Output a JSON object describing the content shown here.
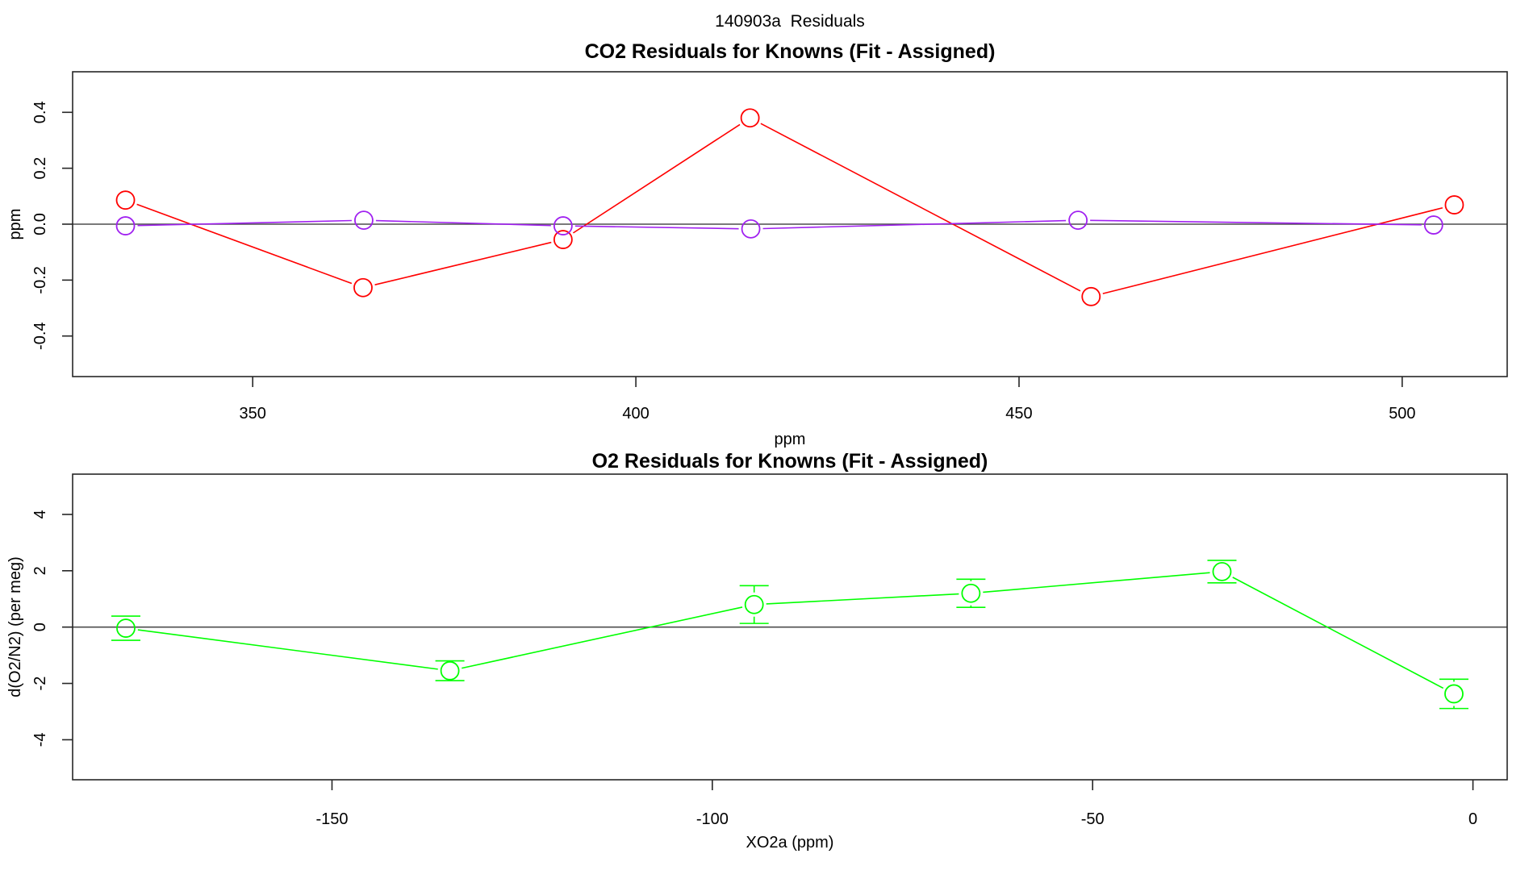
{
  "page": {
    "main_title": "140903a  Residuals",
    "background_color": "#ffffff",
    "box_color": "#262626",
    "zero_line_color": "#4d4d4d"
  },
  "chart_data": [
    {
      "type": "line",
      "title": "CO2 Residuals for Knowns (Fit - Assigned)",
      "xlabel": "ppm",
      "ylabel": "ppm",
      "xlim": [
        326.5,
        513.7
      ],
      "ylim": [
        -0.545,
        0.545
      ],
      "xtick_values": [
        350,
        400,
        450,
        500
      ],
      "xtick_labels": [
        "350",
        "400",
        "450",
        "500"
      ],
      "ytick_values": [
        -0.4,
        -0.2,
        0.0,
        0.2,
        0.4
      ],
      "ytick_labels": [
        "-0.4",
        "-0.2",
        "0.0",
        "0.2",
        "0.4"
      ],
      "grid": false,
      "zero_line": true,
      "legend": null,
      "marker": "open-circle",
      "series": [
        {
          "name": "co2-residual-red",
          "color": "#FF0000",
          "x": [
            333.4,
            364.4,
            390.5,
            414.9,
            459.4,
            506.8
          ],
          "y": [
            0.086,
            -0.227,
            -0.055,
            0.38,
            -0.259,
            0.069
          ]
        },
        {
          "name": "co2-residual-purple",
          "color": "#A020F0",
          "x": [
            333.4,
            364.5,
            390.5,
            415.0,
            457.7,
            504.1
          ],
          "y": [
            -0.006,
            0.014,
            -0.006,
            -0.017,
            0.014,
            -0.003
          ]
        }
      ]
    },
    {
      "type": "line",
      "title": "O2 Residuals for Knowns (Fit - Assigned)",
      "xlabel": "XO2a (ppm)",
      "ylabel": "d(O2/N2) (per meg)",
      "xlim": [
        -184.1,
        4.5
      ],
      "ylim": [
        -5.42,
        5.43
      ],
      "xtick_values": [
        -150,
        -100,
        -50,
        0
      ],
      "xtick_labels": [
        "-150",
        "-100",
        "-50",
        "0"
      ],
      "ytick_values": [
        -4,
        -2,
        0,
        2,
        4
      ],
      "ytick_labels": [
        "-4",
        "-2",
        "0",
        "2",
        "4"
      ],
      "grid": false,
      "zero_line": true,
      "legend": null,
      "marker": "open-circle",
      "series": [
        {
          "name": "o2-residual-green",
          "color": "#00FF00",
          "error_bars": true,
          "x": [
            -177.1,
            -134.5,
            -94.5,
            -66.0,
            -33.0,
            -2.5
          ],
          "y": [
            -0.04,
            -1.55,
            0.8,
            1.2,
            1.97,
            -2.37
          ],
          "yerr": [
            0.43,
            0.35,
            0.67,
            0.5,
            0.4,
            0.52
          ]
        }
      ]
    }
  ]
}
